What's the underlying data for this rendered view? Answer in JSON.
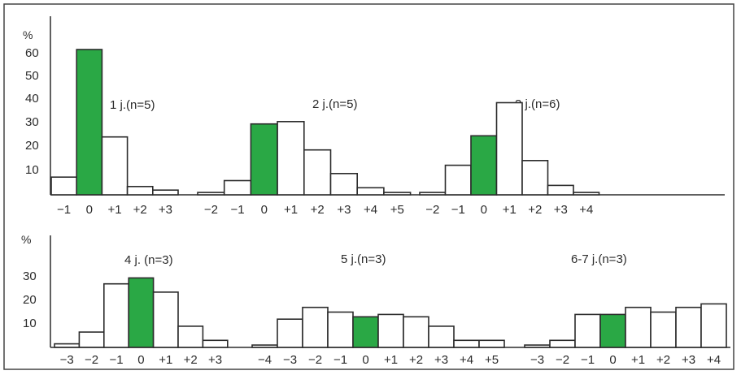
{
  "colors": {
    "highlight": "#2aa845",
    "bar": "#ffffff",
    "stroke": "#2b2b2b",
    "frame": "#444444"
  },
  "chart_data": [
    {
      "type": "bar",
      "row": "top",
      "title": "1 j.(n=5)",
      "categories": [
        "-1",
        "0",
        "+1",
        "+2",
        "+3"
      ],
      "values": [
        7.5,
        61.5,
        24.5,
        3.5,
        2
      ],
      "highlight": "0",
      "ylabel": "%",
      "yticks": [
        "60",
        "50",
        "40",
        "30",
        "20",
        "10"
      ],
      "ylim": [
        0,
        65
      ]
    },
    {
      "type": "bar",
      "row": "top",
      "title": "2 j.(n=5)",
      "categories": [
        "-2",
        "-1",
        "0",
        "+1",
        "+2",
        "+3",
        "+4",
        "+5"
      ],
      "values": [
        1,
        6,
        30,
        31,
        19,
        9,
        3,
        1
      ],
      "highlight": "0",
      "ylim": [
        0,
        65
      ]
    },
    {
      "type": "bar",
      "row": "top",
      "title": "3 j.(n=6)",
      "categories": [
        "-2",
        "-1",
        "0",
        "+1",
        "+2",
        "+3",
        "+4"
      ],
      "values": [
        1,
        12.5,
        25,
        39,
        14.5,
        4,
        1
      ],
      "highlight": "0",
      "ylim": [
        0,
        65
      ]
    },
    {
      "type": "bar",
      "row": "bottom",
      "title": "4 j. (n=3)",
      "categories": [
        "-3",
        "-2",
        "-1",
        "0",
        "+1",
        "+2",
        "+3"
      ],
      "values": [
        1.5,
        6.5,
        27,
        29.5,
        23.5,
        9,
        3
      ],
      "highlight": "0",
      "ylabel": "%",
      "yticks": [
        "30",
        "20",
        "10"
      ],
      "ylim": [
        0,
        35
      ]
    },
    {
      "type": "bar",
      "row": "bottom",
      "title": "5 j.(n=3)",
      "categories": [
        "-4",
        "-3",
        "-2",
        "-1",
        "0",
        "+1",
        "+2",
        "+3",
        "+4",
        "+5"
      ],
      "values": [
        1,
        12,
        17,
        15,
        13,
        14,
        13,
        9,
        3,
        3
      ],
      "highlight": "0",
      "ylim": [
        0,
        35
      ]
    },
    {
      "type": "bar",
      "row": "bottom",
      "title": "6-7 j.(n=3)",
      "categories": [
        "-3",
        "-2",
        "-1",
        "0",
        "+1",
        "+2",
        "+3",
        "+4"
      ],
      "values": [
        1,
        3,
        14,
        14,
        17,
        15,
        17,
        18.5
      ],
      "highlight": "0",
      "ylim": [
        0,
        35
      ]
    }
  ]
}
